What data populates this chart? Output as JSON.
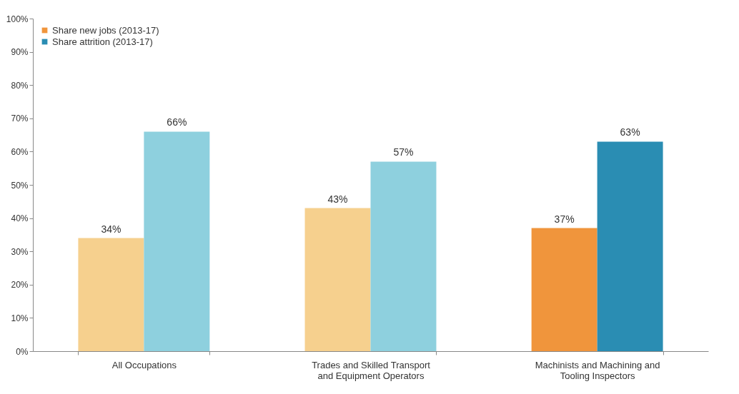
{
  "chart_data": {
    "type": "bar",
    "categories": [
      "All Occupations",
      "Trades and Skilled Transport and Equipment Operators",
      "Machinists and Machining and Tooling Inspectors"
    ],
    "series": [
      {
        "name": "Share new jobs (2013-17)",
        "color": "#f0953c",
        "colors": [
          "#f6d08e",
          "#f6d08e",
          "#f0953c"
        ],
        "values": [
          34,
          43,
          37
        ],
        "value_labels": [
          "34%",
          "43%",
          "37%"
        ]
      },
      {
        "name": "Share attrition (2013-17)",
        "color": "#2a8db3",
        "colors": [
          "#8ed0de",
          "#8ed0de",
          "#2a8db3"
        ],
        "values": [
          66,
          57,
          63
        ],
        "value_labels": [
          "66%",
          "57%",
          "63%"
        ]
      }
    ],
    "ylim": [
      0,
      100
    ],
    "yticks": [
      {
        "value": 0,
        "label": "0%"
      },
      {
        "value": 10,
        "label": "10%"
      },
      {
        "value": 20,
        "label": "20%"
      },
      {
        "value": 30,
        "label": "30%"
      },
      {
        "value": 40,
        "label": "40%"
      },
      {
        "value": 50,
        "label": "50%"
      },
      {
        "value": 60,
        "label": "60%"
      },
      {
        "value": 70,
        "label": "70%"
      },
      {
        "value": 80,
        "label": "80%"
      },
      {
        "value": 90,
        "label": "90%"
      },
      {
        "value": 100,
        "label": "100%"
      }
    ],
    "legend": "top left",
    "grid": false
  }
}
